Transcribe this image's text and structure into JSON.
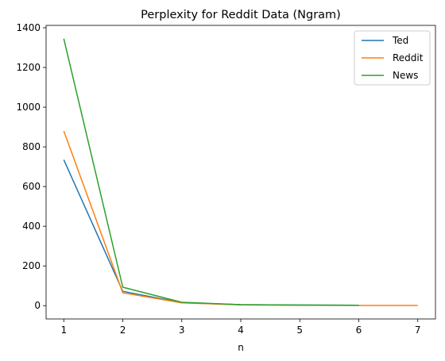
{
  "chart_data": {
    "type": "line",
    "title": "Perplexity for Reddit Data (Ngram)",
    "xlabel": "n",
    "ylabel": "",
    "x": [
      1,
      2,
      3,
      4,
      5,
      6,
      7
    ],
    "xticks": [
      1,
      2,
      3,
      4,
      5,
      6,
      7
    ],
    "yticks": [
      0,
      200,
      400,
      600,
      800,
      1000,
      1200,
      1400
    ],
    "xlim": [
      0.7,
      7.3
    ],
    "ylim": [
      -67,
      1412
    ],
    "grid": false,
    "legend_position": "top-right",
    "series": [
      {
        "name": "Ted",
        "color": "#1f77b4",
        "x": [
          1,
          2,
          3,
          4,
          5,
          6
        ],
        "values": [
          735,
          72,
          15,
          5,
          3,
          2
        ]
      },
      {
        "name": "Reddit",
        "color": "#ff7f0e",
        "x": [
          1,
          2,
          3,
          4,
          5,
          6,
          7
        ],
        "values": [
          880,
          65,
          14,
          4,
          2,
          1,
          1
        ]
      },
      {
        "name": "News",
        "color": "#2ca02c",
        "x": [
          1,
          2,
          3,
          4,
          5,
          6
        ],
        "values": [
          1345,
          93,
          17,
          5,
          3,
          2
        ]
      }
    ]
  }
}
